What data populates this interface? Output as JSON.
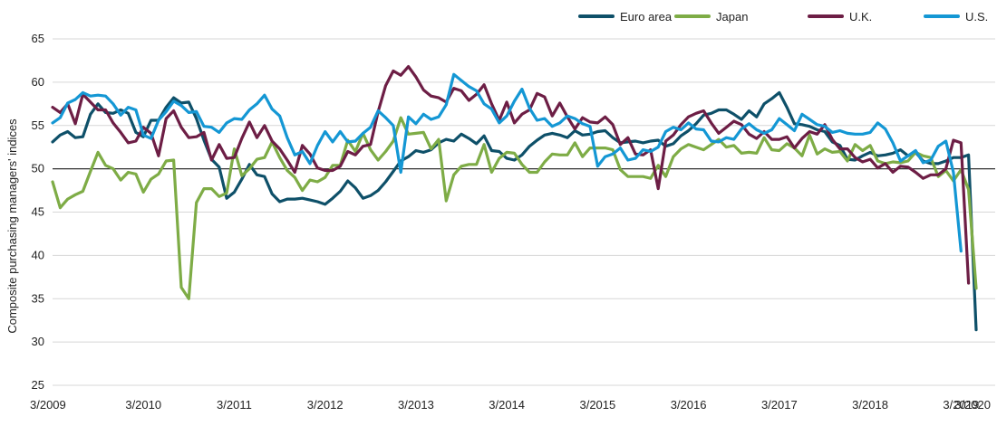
{
  "chart_data": {
    "type": "line",
    "title": "",
    "xlabel": "",
    "ylabel": "Composite purchasing managers' indices",
    "ylim": [
      25,
      65
    ],
    "yticks": [
      25,
      30,
      35,
      40,
      45,
      50,
      55,
      60,
      65
    ],
    "reference_line": 50,
    "grid": "horizontal",
    "legend_position": "top-right",
    "x_start": "2009-03",
    "x_tick_labels": [
      "3/2009",
      "3/2010",
      "3/2011",
      "3/2012",
      "3/2013",
      "3/2014",
      "3/2015",
      "3/2016",
      "3/2017",
      "3/2018",
      "3/2019",
      "3/2020"
    ],
    "x_tick_months": [
      "2009-03",
      "2010-03",
      "2011-03",
      "2012-03",
      "2013-03",
      "2014-03",
      "2015-03",
      "2016-03",
      "2017-03",
      "2018-03",
      "2019-03",
      "2020-03"
    ],
    "series": [
      {
        "name": "Euro area",
        "color": "#0e5069",
        "values": [
          53.1,
          53.9,
          54.3,
          53.6,
          53.7,
          56.3,
          57.5,
          56.5,
          56.4,
          56.8,
          56.4,
          54.2,
          53.7,
          55.6,
          55.6,
          57.1,
          58.2,
          57.6,
          57.7,
          55.8,
          53.3,
          51.1,
          50.2,
          46.6,
          47.3,
          48.8,
          50.5,
          49.3,
          49.1,
          47.1,
          46.2,
          46.5,
          46.5,
          46.6,
          46.4,
          46.2,
          45.9,
          46.6,
          47.4,
          48.6,
          47.8,
          46.6,
          46.9,
          47.5,
          48.5,
          49.7,
          50.9,
          51.4,
          52.1,
          51.9,
          52.2,
          53.0,
          53.4,
          53.2,
          54.0,
          53.5,
          52.9,
          53.8,
          52.1,
          52.0,
          51.2,
          51.0,
          51.6,
          52.6,
          53.3,
          53.9,
          54.1,
          53.9,
          53.6,
          54.4,
          53.9,
          54.0,
          54.3,
          54.4,
          53.6,
          53.0,
          53.1,
          53.2,
          53.0,
          53.2,
          53.3,
          52.6,
          52.9,
          53.8,
          54.4,
          55.2,
          56.2,
          56.4,
          56.8,
          56.8,
          56.3,
          55.7,
          56.7,
          56.0,
          57.5,
          58.1,
          58.8,
          57.1,
          55.2,
          55.1,
          54.9,
          54.5,
          54.3,
          53.1,
          52.7,
          51.1,
          51.0,
          51.5,
          51.9,
          51.5,
          51.6,
          51.8,
          52.2,
          51.5,
          51.9,
          50.9,
          50.6,
          50.6,
          50.9,
          51.3,
          51.3,
          51.6,
          31.4
        ]
      },
      {
        "name": "Japan",
        "color": "#7eac46",
        "values": [
          48.5,
          45.5,
          46.5,
          47.0,
          47.4,
          49.7,
          51.9,
          50.4,
          50.0,
          48.7,
          49.6,
          49.4,
          47.3,
          48.8,
          49.4,
          50.9,
          51.0,
          36.3,
          35.0,
          46.1,
          47.7,
          47.7,
          46.8,
          47.2,
          52.3,
          49.2,
          50.0,
          51.1,
          51.3,
          53.1,
          51.3,
          49.8,
          49.0,
          47.5,
          48.7,
          48.5,
          49.0,
          50.4,
          50.4,
          53.3,
          52.0,
          54.1,
          52.2,
          51.0,
          52.0,
          53.2,
          55.9,
          54.0,
          54.1,
          54.2,
          52.3,
          53.4,
          46.3,
          49.3,
          50.3,
          50.5,
          50.5,
          52.8,
          49.6,
          51.2,
          51.9,
          51.8,
          50.5,
          49.6,
          49.6,
          50.8,
          51.7,
          51.6,
          51.6,
          53.0,
          51.4,
          52.4,
          52.4,
          52.4,
          52.2,
          49.9,
          49.1,
          49.1,
          49.1,
          48.9,
          50.4,
          49.1,
          51.4,
          52.3,
          52.8,
          52.5,
          52.2,
          52.8,
          53.4,
          52.5,
          52.7,
          51.8,
          51.9,
          51.8,
          53.6,
          52.2,
          52.1,
          52.9,
          52.4,
          51.5,
          53.9,
          51.7,
          52.3,
          51.9,
          52.0,
          50.9,
          52.8,
          52.1,
          52.7,
          50.9,
          50.6,
          50.8,
          50.7,
          50.9,
          51.9,
          51.5,
          51.3,
          49.1,
          49.8,
          48.6,
          49.9,
          47.6,
          36.2
        ]
      },
      {
        "name": "U.K.",
        "color": "#6d1e45",
        "values": [
          57.1,
          56.5,
          57.5,
          55.2,
          58.6,
          57.7,
          56.8,
          56.8,
          55.3,
          54.2,
          53.0,
          53.2,
          54.8,
          54.1,
          51.5,
          55.8,
          56.7,
          54.8,
          53.6,
          53.7,
          54.2,
          51.0,
          52.8,
          51.2,
          51.3,
          53.5,
          55.4,
          53.6,
          55.0,
          53.2,
          52.3,
          51.0,
          49.6,
          52.7,
          51.7,
          50.1,
          49.8,
          49.8,
          50.3,
          52.0,
          51.6,
          52.6,
          52.8,
          56.6,
          59.6,
          61.3,
          60.8,
          61.8,
          60.6,
          59.1,
          58.4,
          58.2,
          57.7,
          59.3,
          59.0,
          57.9,
          58.6,
          59.7,
          57.5,
          55.6,
          57.7,
          55.3,
          56.3,
          56.8,
          58.7,
          58.3,
          56.1,
          57.6,
          56.0,
          54.6,
          55.9,
          55.4,
          55.3,
          56.0,
          55.1,
          52.8,
          53.6,
          51.7,
          51.6,
          52.2,
          47.7,
          53.2,
          53.9,
          55.1,
          56.0,
          56.4,
          56.7,
          55.3,
          54.1,
          54.8,
          55.5,
          55.1,
          54.0,
          53.5,
          54.3,
          53.4,
          53.4,
          53.7,
          52.4,
          53.5,
          54.3,
          54.0,
          55.1,
          53.4,
          52.3,
          52.3,
          51.3,
          50.8,
          51.1,
          50.1,
          50.6,
          49.6,
          50.3,
          50.2,
          49.6,
          48.9,
          49.3,
          49.3,
          50.0,
          53.3,
          53.0,
          36.8
        ]
      },
      {
        "name": "U.S.",
        "color": "#1497d4",
        "values": [
          55.3,
          55.9,
          57.6,
          58.0,
          58.8,
          58.4,
          58.5,
          58.4,
          57.5,
          56.2,
          57.1,
          56.8,
          53.9,
          53.5,
          55.6,
          56.6,
          57.8,
          57.3,
          56.5,
          56.6,
          54.9,
          54.8,
          54.2,
          55.3,
          55.8,
          55.7,
          56.8,
          57.5,
          58.5,
          56.9,
          56.1,
          53.6,
          51.6,
          52.0,
          50.6,
          52.7,
          54.3,
          53.1,
          54.3,
          53.1,
          53.2,
          54.1,
          54.8,
          56.7,
          55.9,
          55.0,
          49.6,
          56.0,
          55.2,
          56.3,
          55.7,
          56.0,
          57.4,
          60.9,
          60.2,
          59.5,
          59.0,
          57.5,
          56.9,
          55.3,
          56.1,
          57.8,
          59.2,
          57.0,
          55.6,
          55.8,
          54.9,
          55.3,
          56.1,
          55.8,
          55.2,
          54.9,
          50.3,
          51.4,
          51.7,
          52.4,
          51.0,
          51.2,
          52.2,
          52.0,
          52.5,
          54.3,
          54.8,
          54.5,
          55.3,
          54.6,
          54.5,
          53.2,
          53.1,
          53.6,
          53.4,
          54.6,
          55.2,
          54.5,
          54.1,
          54.5,
          55.8,
          55.1,
          54.4,
          56.3,
          55.7,
          55.1,
          54.9,
          54.2,
          54.4,
          54.1,
          54.0,
          54.0,
          54.2,
          55.3,
          54.6,
          53.0,
          50.9,
          51.5,
          52.1,
          50.7,
          51.0,
          52.6,
          53.2,
          49.6,
          40.5
        ]
      }
    ]
  }
}
